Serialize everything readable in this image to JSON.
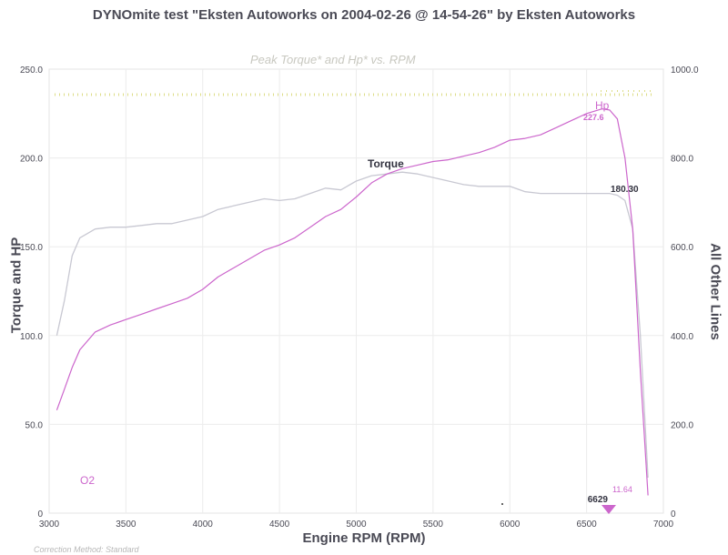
{
  "header": {
    "title": "DYNOmite test \"Eksten Autoworks on 2004-02-26 @ 14-54-26\" by Eksten Autoworks",
    "footnote": "Correction Method: Standard"
  },
  "colors": {
    "torque": "#c8c8d2",
    "hp": "#cc66cc",
    "gridline": "#ececec",
    "text": "#4a4a55",
    "dotted": "#dddd88"
  },
  "chart_data": {
    "type": "line",
    "title": "Peak Torque* and Hp* vs. RPM",
    "xlabel": "Engine RPM (RPM)",
    "ylabel": "Torque and HP",
    "ylabel_right": "All Other Lines",
    "xlim": [
      3000,
      7000
    ],
    "ylim": [
      0,
      250
    ],
    "ylim_right": [
      0,
      1000
    ],
    "x_ticks": [
      "3000",
      "3500",
      "4000",
      "4500",
      "5000",
      "5500",
      "6000",
      "6500",
      "7000"
    ],
    "y_ticks": [
      "0",
      "50.0",
      "100.0",
      "150.0",
      "200.0",
      "250.0"
    ],
    "y_ticks_right": [
      "0",
      "200.0",
      "400.0",
      "600.0",
      "800.0",
      "1000.0"
    ],
    "series": [
      {
        "name": "Torque",
        "x": [
          3050,
          3100,
          3150,
          3200,
          3300,
          3400,
          3500,
          3600,
          3700,
          3800,
          3900,
          4000,
          4100,
          4200,
          4300,
          4400,
          4500,
          4600,
          4700,
          4800,
          4900,
          5000,
          5100,
          5200,
          5300,
          5400,
          5500,
          5600,
          5700,
          5800,
          5900,
          6000,
          6100,
          6200,
          6300,
          6400,
          6500,
          6600,
          6650,
          6700,
          6750,
          6800,
          6850,
          6900
        ],
        "y": [
          100,
          120,
          145,
          155,
          160,
          161,
          161,
          162,
          163,
          163,
          165,
          167,
          171,
          173,
          175,
          177,
          176,
          177,
          180,
          183,
          182,
          187,
          190,
          191,
          192,
          191,
          189,
          187,
          185,
          184,
          184,
          184,
          181,
          180,
          180,
          180,
          180,
          180,
          180,
          179,
          176,
          160,
          100,
          20
        ]
      },
      {
        "name": "Hp",
        "x": [
          3050,
          3100,
          3150,
          3200,
          3300,
          3400,
          3500,
          3600,
          3700,
          3800,
          3900,
          4000,
          4100,
          4200,
          4300,
          4400,
          4500,
          4600,
          4700,
          4800,
          4900,
          5000,
          5100,
          5200,
          5300,
          5400,
          5500,
          5600,
          5700,
          5800,
          5900,
          6000,
          6100,
          6200,
          6300,
          6400,
          6500,
          6600,
          6650,
          6700,
          6750,
          6800,
          6850,
          6900
        ],
        "y": [
          58,
          70,
          82,
          92,
          102,
          106,
          109,
          112,
          115,
          118,
          121,
          126,
          133,
          138,
          143,
          148,
          151,
          155,
          161,
          167,
          171,
          178,
          186,
          191,
          194,
          196,
          198,
          199,
          201,
          203,
          206,
          210,
          211,
          213,
          217,
          221,
          225,
          227.6,
          227,
          222,
          200,
          160,
          80,
          10
        ]
      }
    ],
    "annotations": [
      {
        "label": "Torque"
      },
      {
        "label": "Hp"
      },
      {
        "label": "227.6"
      },
      {
        "label": "180.30"
      },
      {
        "label": "O2"
      },
      {
        "label": "6629"
      },
      {
        "label": "11.64"
      }
    ],
    "grid": true
  }
}
